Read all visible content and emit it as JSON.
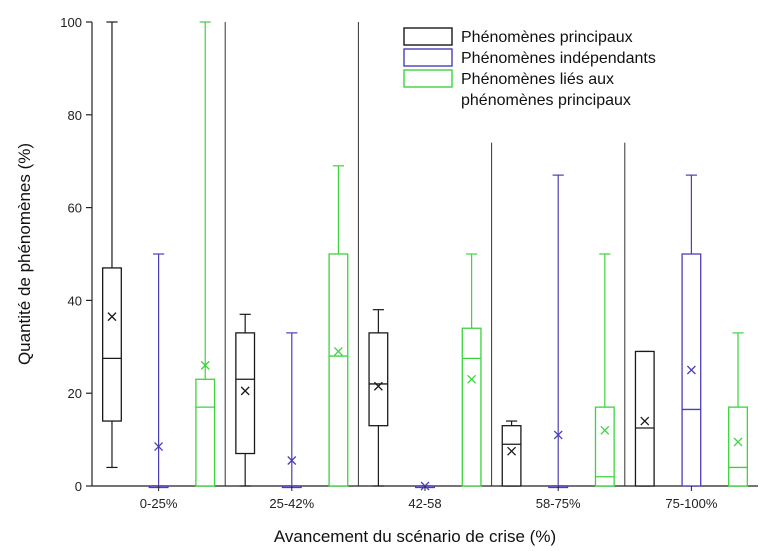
{
  "chart_data": {
    "type": "boxplot",
    "xlabel": "Avancement du scénario de crise (%)",
    "ylabel": "Quantité de phénomènes   (%)",
    "ylim": [
      0,
      100
    ],
    "yticks": [
      0,
      20,
      40,
      60,
      80,
      100
    ],
    "grid": false,
    "legend_position": "top-right",
    "categories": [
      "0-25%",
      "25-42%",
      "42-58",
      "58-75%",
      "75-100%"
    ],
    "series": [
      {
        "name": "Phénomènes principaux",
        "color": "#1a1a1a",
        "boxes": [
          {
            "min": 4,
            "q1": 14,
            "median": 27.5,
            "q3": 47,
            "max": 100,
            "mean": 36.5
          },
          {
            "min": 0,
            "q1": 7,
            "median": 23,
            "q3": 33,
            "max": 37,
            "mean": 20.5
          },
          {
            "min": 0,
            "q1": 13,
            "median": 22,
            "q3": 33,
            "max": 38,
            "mean": 21.5
          },
          {
            "min": 0,
            "q1": 0,
            "median": 9,
            "q3": 13,
            "max": 14,
            "mean": 7.5
          },
          {
            "min": 0,
            "q1": 0,
            "median": 12.5,
            "q3": 29,
            "max": 29,
            "mean": 14
          }
        ]
      },
      {
        "name": "Phénomènes indépendants",
        "color": "#4b3fb8",
        "boxes": [
          {
            "min": 0,
            "q1": 0,
            "median": 0,
            "q3": 0,
            "max": 50,
            "mean": 8.5
          },
          {
            "min": 0,
            "q1": 0,
            "median": 0,
            "q3": 0,
            "max": 33,
            "mean": 5.5
          },
          {
            "min": 0,
            "q1": 0,
            "median": 0,
            "q3": 0,
            "max": 0,
            "mean": 0
          },
          {
            "min": 0,
            "q1": 0,
            "median": 0,
            "q3": 0,
            "max": 67,
            "mean": 11
          },
          {
            "min": 0,
            "q1": 0,
            "median": 16.5,
            "q3": 50,
            "max": 67,
            "mean": 25
          }
        ]
      },
      {
        "name": "Phénomènes liés aux phénomènes principaux",
        "legend_lines": [
          "Phénomènes liés aux",
          "phénomènes principaux"
        ],
        "color": "#3cd43c",
        "boxes": [
          {
            "min": 0,
            "q1": 0,
            "median": 17,
            "q3": 23,
            "max": 100,
            "mean": 26
          },
          {
            "min": 0,
            "q1": 0,
            "median": 28,
            "q3": 50,
            "max": 69,
            "mean": 29
          },
          {
            "min": 0,
            "q1": 0,
            "median": 27.5,
            "q3": 34,
            "max": 50,
            "mean": 23
          },
          {
            "min": 0,
            "q1": 0,
            "median": 2,
            "q3": 17,
            "max": 50,
            "mean": 12
          },
          {
            "min": 0,
            "q1": 0,
            "median": 4,
            "q3": 17,
            "max": 33,
            "mean": 9.5
          }
        ]
      }
    ]
  }
}
